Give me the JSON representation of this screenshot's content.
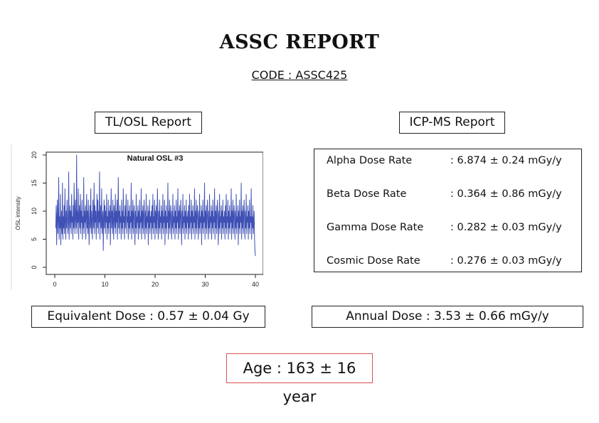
{
  "report": {
    "title": "ASSC REPORT",
    "code": "CODE : ASSC425"
  },
  "tl_osl": {
    "label": "TL/OSL Report"
  },
  "icp_ms": {
    "label": "ICP-MS Report",
    "rows": [
      {
        "label": "Alpha Dose Rate",
        "value": ": 6.874 ± 0.24 mGy/y"
      },
      {
        "label": "Beta Dose Rate",
        "value": ": 0.364 ± 0.86 mGy/y"
      },
      {
        "label": "Gamma Dose Rate",
        "value": ": 0.282 ± 0.03 mGy/y"
      },
      {
        "label": "Cosmic Dose Rate",
        "value": ": 0.276 ± 0.03 mGy/y"
      }
    ]
  },
  "results": {
    "equivalent_dose": "Equivalent Dose : 0.57 ± 0.04 Gy",
    "annual_dose": "Annual Dose : 3.53 ± 0.66 mGy/y",
    "age": "Age : 163 ± 16 year"
  },
  "chart_data": {
    "type": "line",
    "title": "Natural OSL #3",
    "xlabel": "",
    "ylabel": "OSL intensity",
    "xlim": [
      0,
      40
    ],
    "ylim": [
      0,
      20
    ],
    "xticks": [
      0,
      10,
      20,
      30,
      40
    ],
    "yticks": [
      0,
      5,
      10,
      15,
      20
    ],
    "line_color": "#3f51b5",
    "series": [
      {
        "x_start": 0.2,
        "x_end": 40,
        "values": [
          7,
          11,
          4,
          9,
          12,
          6,
          8,
          16,
          5,
          9,
          7,
          13,
          4,
          8,
          10,
          6,
          15,
          5,
          9,
          7,
          11,
          6,
          14,
          8,
          5,
          10,
          7,
          12,
          9,
          6,
          8,
          17,
          5,
          9,
          11,
          7,
          10,
          6,
          13,
          8,
          9,
          5,
          11,
          7,
          15,
          8,
          6,
          12,
          9,
          7,
          20,
          6,
          10,
          8,
          14,
          5,
          9,
          11,
          7,
          13,
          6,
          10,
          8,
          12,
          5,
          9,
          7,
          16,
          6,
          10,
          8,
          11,
          5,
          9,
          13,
          7,
          10,
          6,
          12,
          8,
          4,
          9,
          11,
          7,
          14,
          6,
          10,
          8,
          5,
          12,
          9,
          7,
          15,
          6,
          11,
          8,
          10,
          5,
          9,
          13,
          7,
          12,
          6,
          10,
          8,
          17,
          5,
          9,
          11,
          7,
          14,
          6,
          8,
          10,
          3,
          9,
          12,
          7,
          11,
          6,
          10,
          8,
          13,
          5,
          9,
          7,
          12,
          6,
          10,
          8,
          11,
          4,
          9,
          14,
          7,
          10,
          6,
          12,
          8,
          5,
          11,
          9,
          7,
          13,
          6,
          10,
          8,
          12,
          5,
          9,
          16,
          7,
          10,
          6,
          11,
          8,
          9,
          5,
          12,
          7,
          10,
          6,
          14,
          8,
          9,
          5,
          11,
          7,
          10,
          13,
          6,
          9,
          8,
          12,
          5,
          10,
          7,
          11,
          6,
          9,
          8,
          15,
          5,
          10,
          7,
          12,
          6,
          9,
          11,
          8,
          4,
          10,
          7,
          13,
          6,
          9,
          8,
          11,
          5,
          10,
          7,
          12,
          6,
          9,
          8,
          14,
          5,
          10,
          7,
          11,
          6,
          9,
          12,
          8,
          5,
          10,
          7,
          13,
          6,
          9,
          8,
          11,
          4,
          10,
          7,
          12,
          6,
          9,
          8,
          10,
          5,
          11,
          7,
          13,
          6,
          9,
          8,
          12,
          5,
          10,
          7,
          11,
          6,
          9,
          14,
          8,
          5,
          10,
          7,
          12,
          6,
          9,
          8,
          11,
          5,
          10,
          7,
          13,
          6,
          9,
          8,
          12,
          4,
          10,
          7,
          11,
          6,
          9,
          8,
          15,
          5,
          10,
          7,
          12,
          6,
          9,
          11,
          8,
          5,
          10,
          7,
          13,
          6,
          9,
          8,
          11,
          5,
          10,
          7,
          12,
          6,
          9,
          8,
          14,
          5,
          10,
          7,
          11,
          6,
          9,
          12,
          8,
          4,
          10,
          7,
          13,
          6,
          9,
          8,
          11,
          5,
          10,
          7,
          12,
          6,
          9,
          8,
          10,
          5,
          11,
          7,
          13,
          6,
          9,
          8,
          12,
          5,
          10,
          7,
          11,
          6,
          9,
          8,
          14,
          5,
          10,
          7,
          12,
          6,
          9,
          11,
          8,
          5,
          10,
          7,
          13,
          6,
          9,
          8,
          11,
          4,
          10,
          7,
          12,
          6,
          9,
          8,
          15,
          5,
          10,
          7,
          11,
          6,
          9,
          12,
          8,
          5,
          10,
          7,
          13,
          6,
          9,
          8,
          11,
          5,
          10,
          7,
          12,
          6,
          9,
          8,
          14,
          5,
          10,
          7,
          11,
          6,
          9,
          12,
          8,
          4,
          10,
          7,
          13,
          6,
          9,
          8,
          11,
          5,
          10,
          7,
          12,
          6,
          9,
          8,
          10,
          5,
          11,
          7,
          13,
          6,
          9,
          8,
          12,
          5,
          10,
          7,
          11,
          6,
          9,
          8,
          14,
          5,
          10,
          7,
          12,
          6,
          9,
          11,
          8,
          5,
          10,
          7,
          13,
          6,
          9,
          8,
          11,
          4,
          10,
          7,
          12,
          6,
          9,
          8,
          15,
          5,
          10,
          7,
          11,
          6,
          9,
          12,
          8,
          5,
          10,
          7,
          13,
          6,
          9,
          8,
          11,
          5,
          10,
          7,
          12,
          6,
          9,
          8,
          14,
          5,
          9,
          7,
          11,
          6,
          8,
          10,
          5,
          3,
          2
        ]
      }
    ]
  }
}
